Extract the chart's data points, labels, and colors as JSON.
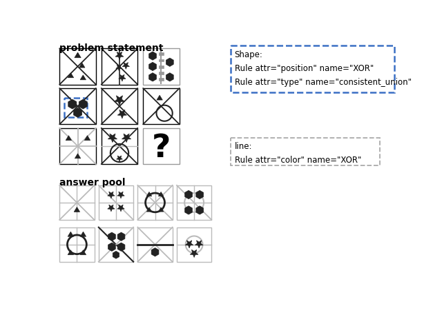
{
  "title_problem": "problem statement",
  "title_answer": "answer pool",
  "shape_box_text": "Shape:\nRule attr=\"position\" name=\"XOR\"\nRule attr=\"type\" name=\"consistent_union\"",
  "line_box_text": "line:\nRule attr=\"color\" name=\"XOR\"",
  "bg_color": "#ffffff",
  "dark": "#222222",
  "gray": "#999999",
  "lgray": "#bbbbbb",
  "blue_dash": "#3a6fc4",
  "gray_dash": "#aaaaaa"
}
